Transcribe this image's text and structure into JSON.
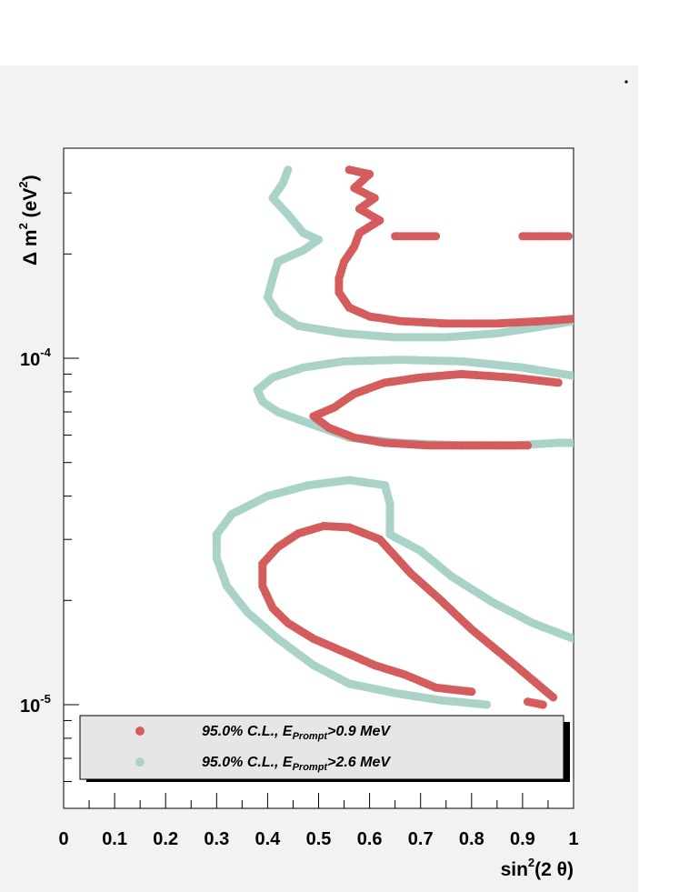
{
  "chart_data": {
    "type": "scatter",
    "title": "",
    "xlabel": "sin²(2 θ)",
    "ylabel": "Δ m² (eV²)",
    "xlim": [
      0,
      1
    ],
    "ylim": [
      5e-06,
      0.00035
    ],
    "yscale": "log",
    "grid": false,
    "legend_position": "bottom",
    "x_tick_labels": [
      "0",
      "0.1",
      "0.2",
      "0.3",
      "0.4",
      "0.5",
      "0.6",
      "0.7",
      "0.8",
      "0.9",
      "1"
    ],
    "x_ticks": [
      0,
      0.1,
      0.2,
      0.3,
      0.4,
      0.5,
      0.6,
      0.7,
      0.8,
      0.9,
      1
    ],
    "y_major_ticks": [
      {
        "value": 1e-05,
        "base": "10",
        "exp": "-5"
      },
      {
        "value": 0.0001,
        "base": "10",
        "exp": "-4"
      }
    ],
    "series": [
      {
        "name": "95.0% C.L., E_Prompt>0.9 MeV",
        "legend_main": "95.0% C.L., E",
        "legend_sub": "Prompt",
        "legend_tail": ">0.9 MeV",
        "color": "#d45c5c",
        "curves": [
          [
            [
              0.56,
              0.00035
            ],
            [
              0.6,
              0.00034
            ],
            [
              0.57,
              0.00031
            ],
            [
              0.61,
              0.00029
            ],
            [
              0.58,
              0.00027
            ],
            [
              0.62,
              0.00025
            ],
            [
              0.58,
              0.00023
            ],
            [
              0.57,
              0.00021
            ],
            [
              0.55,
              0.00019
            ],
            [
              0.54,
              0.00017
            ],
            [
              0.54,
              0.000155
            ],
            [
              0.56,
              0.00014
            ],
            [
              0.6,
              0.000132
            ],
            [
              0.66,
              0.000128
            ],
            [
              0.75,
              0.000126
            ],
            [
              0.85,
              0.000126
            ],
            [
              0.94,
              0.000128
            ],
            [
              1.0,
              0.00013
            ]
          ],
          [
            [
              0.65,
              0.000225
            ],
            [
              0.73,
              0.000225
            ]
          ],
          [
            [
              0.9,
              0.000225
            ],
            [
              0.99,
              0.000225
            ]
          ],
          [
            [
              0.97,
              8.5e-05
            ],
            [
              0.88,
              8.8e-05
            ],
            [
              0.78,
              9e-05
            ],
            [
              0.7,
              8.8e-05
            ],
            [
              0.63,
              8.5e-05
            ],
            [
              0.57,
              7.9e-05
            ],
            [
              0.53,
              7.2e-05
            ],
            [
              0.49,
              6.8e-05
            ],
            [
              0.52,
              6.3e-05
            ],
            [
              0.57,
              5.9e-05
            ],
            [
              0.63,
              5.7e-05
            ],
            [
              0.72,
              5.6e-05
            ],
            [
              0.82,
              5.6e-05
            ],
            [
              0.91,
              5.6e-05
            ]
          ],
          [
            [
              0.96,
              1.05e-05
            ],
            [
              0.88,
              1.32e-05
            ],
            [
              0.8,
              1.65e-05
            ],
            [
              0.74,
              2e-05
            ],
            [
              0.68,
              2.4e-05
            ],
            [
              0.62,
              3e-05
            ],
            [
              0.56,
              3.25e-05
            ],
            [
              0.51,
              3.28e-05
            ],
            [
              0.46,
              3.12e-05
            ],
            [
              0.42,
              2.85e-05
            ],
            [
              0.39,
              2.55e-05
            ],
            [
              0.39,
              2.2e-05
            ],
            [
              0.41,
              1.9e-05
            ],
            [
              0.44,
              1.72e-05
            ],
            [
              0.49,
              1.55e-05
            ],
            [
              0.55,
              1.42e-05
            ],
            [
              0.61,
              1.3e-05
            ],
            [
              0.67,
              1.22e-05
            ],
            [
              0.73,
              1.12e-05
            ],
            [
              0.8,
              1.09e-05
            ]
          ],
          [
            [
              0.91,
              1.02e-05
            ],
            [
              0.94,
              1e-05
            ]
          ]
        ]
      },
      {
        "name": "95.0% C.L., E_Prompt>2.6 MeV",
        "legend_main": "95.0% C.L., E",
        "legend_sub": "Prompt",
        "legend_tail": ">2.6 MeV",
        "color": "#a9d2c8",
        "curves": [
          [
            [
              0.44,
              0.00035
            ],
            [
              0.43,
              0.00032
            ],
            [
              0.41,
              0.00029
            ],
            [
              0.44,
              0.00026
            ],
            [
              0.47,
              0.00023
            ],
            [
              0.5,
              0.00022
            ],
            [
              0.47,
              0.000205
            ],
            [
              0.42,
              0.00019
            ],
            [
              0.41,
              0.00017
            ],
            [
              0.4,
              0.00015
            ],
            [
              0.42,
              0.000135
            ],
            [
              0.46,
              0.000124
            ],
            [
              0.55,
              0.000118
            ],
            [
              0.65,
              0.000115
            ],
            [
              0.75,
              0.000115
            ],
            [
              0.85,
              0.000118
            ],
            [
              0.93,
              0.000123
            ],
            [
              1.0,
              0.000128
            ]
          ],
          [
            [
              1.0,
              8.9e-05
            ],
            [
              0.9,
              9.4e-05
            ],
            [
              0.78,
              9.8e-05
            ],
            [
              0.66,
              9.9e-05
            ],
            [
              0.55,
              9.8e-05
            ],
            [
              0.47,
              9.4e-05
            ],
            [
              0.41,
              8.8e-05
            ],
            [
              0.38,
              8.1e-05
            ],
            [
              0.39,
              7.5e-05
            ],
            [
              0.42,
              7e-05
            ],
            [
              0.48,
              6.5e-05
            ],
            [
              0.56,
              5.9e-05
            ],
            [
              0.66,
              5.7e-05
            ],
            [
              0.78,
              5.6e-05
            ],
            [
              0.88,
              5.6e-05
            ],
            [
              0.97,
              5.7e-05
            ],
            [
              1.0,
              5.7e-05
            ]
          ],
          [
            [
              1.0,
              1.55e-05
            ],
            [
              0.92,
              1.72e-05
            ],
            [
              0.84,
              1.98e-05
            ],
            [
              0.76,
              2.35e-05
            ],
            [
              0.7,
              2.78e-05
            ],
            [
              0.64,
              3.1e-05
            ],
            [
              0.64,
              3.4e-05
            ],
            [
              0.64,
              3.8e-05
            ],
            [
              0.63,
              4.3e-05
            ],
            [
              0.56,
              4.45e-05
            ],
            [
              0.48,
              4.3e-05
            ],
            [
              0.4,
              4e-05
            ],
            [
              0.33,
              3.55e-05
            ],
            [
              0.3,
              3.1e-05
            ],
            [
              0.3,
              2.65e-05
            ],
            [
              0.32,
              2.2e-05
            ],
            [
              0.36,
              1.85e-05
            ],
            [
              0.42,
              1.55e-05
            ],
            [
              0.49,
              1.3e-05
            ],
            [
              0.56,
              1.15e-05
            ],
            [
              0.65,
              1.08e-05
            ],
            [
              0.74,
              1.03e-05
            ],
            [
              0.83,
              1e-05
            ]
          ]
        ]
      }
    ]
  }
}
